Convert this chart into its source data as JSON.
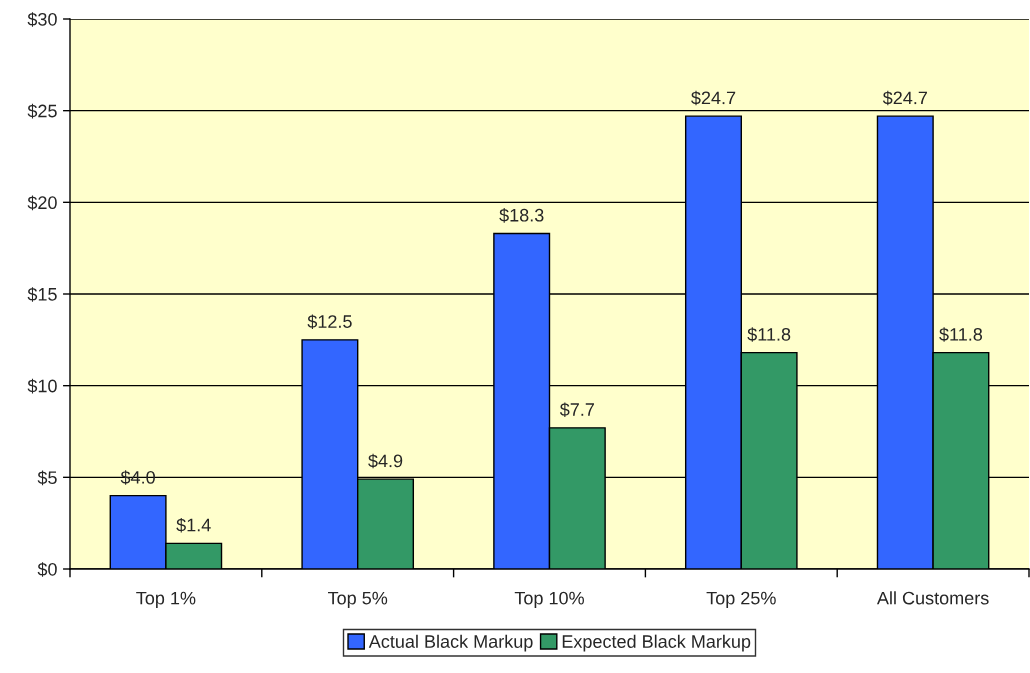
{
  "chart_data": {
    "type": "bar",
    "categories": [
      "Top 1%",
      "Top 5%",
      "Top 10%",
      "Top 25%",
      "All Customers"
    ],
    "series": [
      {
        "name": "Actual Black Markup",
        "color": "#3366ff",
        "values": [
          4.0,
          12.5,
          18.3,
          24.7,
          24.7
        ],
        "value_labels": [
          "$4.0",
          "$12.5",
          "$18.3",
          "$24.7",
          "$24.7"
        ]
      },
      {
        "name": "Expected Black Markup",
        "color": "#339966",
        "values": [
          1.4,
          4.9,
          7.7,
          11.8,
          11.8
        ],
        "value_labels": [
          "$1.4",
          "$4.9",
          "$7.7",
          "$11.8",
          "$11.8"
        ]
      }
    ],
    "ylim": [
      0,
      30
    ],
    "yticks": [
      {
        "value": 0,
        "label": "$0"
      },
      {
        "value": 5,
        "label": "$5"
      },
      {
        "value": 10,
        "label": "$10"
      },
      {
        "value": 15,
        "label": "$15"
      },
      {
        "value": 20,
        "label": "$20"
      },
      {
        "value": 25,
        "label": "$25"
      },
      {
        "value": 30,
        "label": "$30"
      }
    ],
    "grid": "y",
    "legend": "bottom"
  }
}
